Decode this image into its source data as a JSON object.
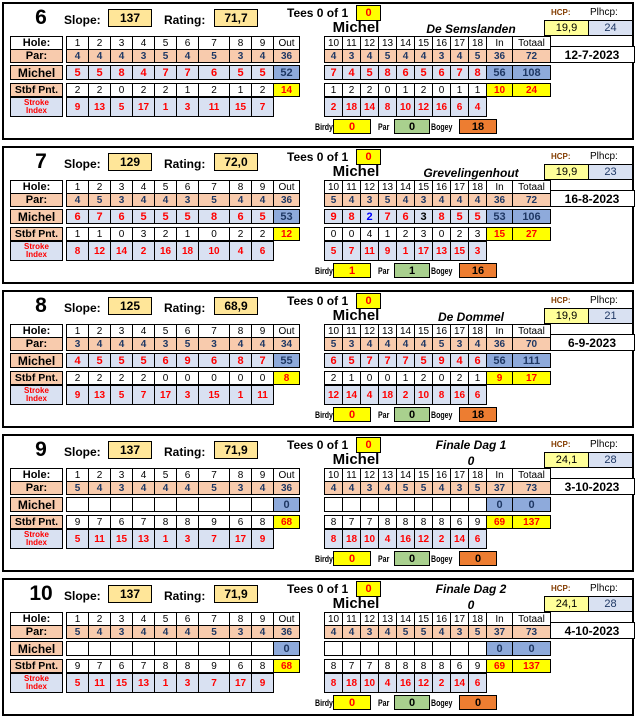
{
  "labels": {
    "slope": "Slope:",
    "rating": "Rating:",
    "tees": "Tees 0 of 1",
    "hcp": "HCP:",
    "plhcp": "Plhcp:",
    "hole": "Hole:",
    "par": "Par:",
    "stbf": "Stbf Pnt.",
    "stroke1": "Stroke",
    "stroke2": "Index",
    "out": "Out",
    "in": "In",
    "totaal": "Totaal",
    "birdy": "Birdy",
    "par_sum": "Par",
    "bogey": "Bogey",
    "front_holes": [
      "1",
      "2",
      "3",
      "4",
      "5",
      "6",
      "7",
      "8",
      "9"
    ],
    "back_holes": [
      "10",
      "11",
      "12",
      "13",
      "14",
      "15",
      "16",
      "17",
      "18"
    ]
  },
  "colors": {
    "peach": "#F8CBAD",
    "lavender": "#D9E1F2",
    "score_total_blue": "#8EAADB",
    "tan": "#FFE699",
    "yellow": "#FFFF00",
    "pale_yellow": "#FFFF99",
    "green": "#A9D08E",
    "orange": "#ED7D31",
    "red": "#FF0000",
    "navy": "#1F3864",
    "birdie_blue": "#0000FF"
  },
  "blocks": [
    {
      "round": "6",
      "slope": "137",
      "rating": "71,7",
      "tees_value": "0",
      "player": "Michel",
      "course_top": "",
      "course": "De Semslanden",
      "hcp": "19,9",
      "plhcp": "24",
      "date": "12-7-2023",
      "front": {
        "par": [
          "4",
          "4",
          "4",
          "3",
          "5",
          "4",
          "5",
          "3",
          "4"
        ],
        "par_out": "36",
        "scores": [
          "5",
          "5",
          "8",
          "4",
          "7",
          "7",
          "6",
          "5",
          "5"
        ],
        "score_colors": [
          "red",
          "red",
          "red",
          "red",
          "red",
          "red",
          "red",
          "red",
          "red"
        ],
        "score_out": "52",
        "stbf": [
          "2",
          "2",
          "0",
          "2",
          "2",
          "1",
          "2",
          "1",
          "2"
        ],
        "stbf_out": "14",
        "stroke": [
          "9",
          "13",
          "5",
          "17",
          "1",
          "3",
          "11",
          "15",
          "7"
        ]
      },
      "back": {
        "par": [
          "4",
          "3",
          "4",
          "5",
          "4",
          "4",
          "3",
          "4",
          "5"
        ],
        "par_in": "36",
        "par_total": "72",
        "scores": [
          "7",
          "4",
          "5",
          "8",
          "6",
          "5",
          "6",
          "7",
          "8"
        ],
        "score_colors": [
          "red",
          "red",
          "red",
          "red",
          "red",
          "red",
          "red",
          "red",
          "red"
        ],
        "score_in": "56",
        "score_total": "108",
        "stbf": [
          "1",
          "2",
          "2",
          "0",
          "1",
          "2",
          "0",
          "1",
          "1"
        ],
        "stbf_in": "10",
        "stbf_total": "24",
        "stroke": [
          "2",
          "18",
          "14",
          "8",
          "10",
          "12",
          "16",
          "6",
          "4"
        ]
      },
      "summary": {
        "birdy": "0",
        "par": "0",
        "bogey": "18"
      }
    },
    {
      "round": "7",
      "slope": "129",
      "rating": "72,0",
      "tees_value": "0",
      "player": "Michel",
      "course_top": "",
      "course": "Grevelingenhout",
      "hcp": "19,9",
      "plhcp": "23",
      "date": "16-8-2023",
      "front": {
        "par": [
          "4",
          "5",
          "3",
          "4",
          "4",
          "3",
          "5",
          "4",
          "4"
        ],
        "par_out": "36",
        "scores": [
          "6",
          "7",
          "6",
          "5",
          "5",
          "5",
          "8",
          "6",
          "5"
        ],
        "score_colors": [
          "red",
          "red",
          "red",
          "red",
          "red",
          "red",
          "red",
          "red",
          "red"
        ],
        "score_out": "53",
        "stbf": [
          "1",
          "1",
          "0",
          "3",
          "2",
          "1",
          "0",
          "2",
          "2"
        ],
        "stbf_out": "12",
        "stroke": [
          "8",
          "12",
          "14",
          "2",
          "16",
          "18",
          "10",
          "4",
          "6"
        ]
      },
      "back": {
        "par": [
          "5",
          "4",
          "3",
          "5",
          "4",
          "3",
          "4",
          "4",
          "4"
        ],
        "par_in": "36",
        "par_total": "72",
        "scores": [
          "9",
          "8",
          "2",
          "7",
          "6",
          "3",
          "8",
          "5",
          "5"
        ],
        "score_colors": [
          "red",
          "red",
          "blue",
          "red",
          "red",
          "black",
          "red",
          "red",
          "red"
        ],
        "score_in": "53",
        "score_total": "106",
        "stbf": [
          "0",
          "0",
          "4",
          "1",
          "2",
          "3",
          "0",
          "2",
          "3"
        ],
        "stbf_in": "15",
        "stbf_total": "27",
        "stroke": [
          "5",
          "7",
          "11",
          "9",
          "1",
          "17",
          "13",
          "15",
          "3"
        ]
      },
      "summary": {
        "birdy": "1",
        "par": "1",
        "bogey": "16"
      }
    },
    {
      "round": "8",
      "slope": "125",
      "rating": "68,9",
      "tees_value": "0",
      "player": "Michel",
      "course_top": "",
      "course": "De Dommel",
      "hcp": "19,9",
      "plhcp": "21",
      "date": "6-9-2023",
      "front": {
        "par": [
          "3",
          "4",
          "4",
          "4",
          "3",
          "5",
          "3",
          "4",
          "4"
        ],
        "par_out": "34",
        "scores": [
          "4",
          "5",
          "5",
          "5",
          "6",
          "9",
          "6",
          "8",
          "7"
        ],
        "score_colors": [
          "red",
          "red",
          "red",
          "red",
          "red",
          "red",
          "red",
          "red",
          "red"
        ],
        "score_out": "55",
        "stbf": [
          "2",
          "2",
          "2",
          "2",
          "0",
          "0",
          "0",
          "0",
          "0"
        ],
        "stbf_out": "8",
        "stroke": [
          "9",
          "13",
          "5",
          "7",
          "17",
          "3",
          "15",
          "1",
          "11"
        ]
      },
      "back": {
        "par": [
          "5",
          "3",
          "4",
          "4",
          "4",
          "4",
          "5",
          "3",
          "4"
        ],
        "par_in": "36",
        "par_total": "70",
        "scores": [
          "6",
          "5",
          "7",
          "7",
          "7",
          "5",
          "9",
          "4",
          "6"
        ],
        "score_colors": [
          "red",
          "red",
          "red",
          "red",
          "red",
          "red",
          "red",
          "red",
          "red"
        ],
        "score_in": "56",
        "score_total": "111",
        "stbf": [
          "2",
          "1",
          "0",
          "0",
          "1",
          "2",
          "0",
          "2",
          "1"
        ],
        "stbf_in": "9",
        "stbf_total": "17",
        "stroke": [
          "12",
          "14",
          "4",
          "18",
          "2",
          "10",
          "8",
          "16",
          "6"
        ]
      },
      "summary": {
        "birdy": "0",
        "par": "0",
        "bogey": "18"
      }
    },
    {
      "round": "9",
      "slope": "137",
      "rating": "71,9",
      "tees_value": "0",
      "player": "Michel",
      "course_top": "Finale Dag 1",
      "course": "0",
      "hcp": "24,1",
      "plhcp": "28",
      "date": "3-10-2023",
      "front": {
        "par": [
          "5",
          "4",
          "3",
          "4",
          "4",
          "4",
          "5",
          "3",
          "4"
        ],
        "par_out": "36",
        "scores": [
          "",
          "",
          "",
          "",
          "",
          "",
          "",
          "",
          ""
        ],
        "score_colors": [
          "",
          "",
          "",
          "",
          "",
          "",
          "",
          "",
          ""
        ],
        "score_out": "0",
        "stbf": [
          "9",
          "7",
          "6",
          "7",
          "8",
          "8",
          "9",
          "6",
          "8"
        ],
        "stbf_out": "68",
        "stroke": [
          "5",
          "11",
          "15",
          "13",
          "1",
          "3",
          "7",
          "17",
          "9"
        ]
      },
      "back": {
        "par": [
          "4",
          "4",
          "3",
          "4",
          "5",
          "5",
          "4",
          "3",
          "5"
        ],
        "par_in": "37",
        "par_total": "73",
        "scores": [
          "",
          "",
          "",
          "",
          "",
          "",
          "",
          "",
          ""
        ],
        "score_colors": [
          "",
          "",
          "",
          "",
          "",
          "",
          "",
          "",
          ""
        ],
        "score_in": "0",
        "score_total": "0",
        "stbf": [
          "8",
          "7",
          "7",
          "8",
          "8",
          "8",
          "8",
          "6",
          "9"
        ],
        "stbf_in": "69",
        "stbf_total": "137",
        "stroke": [
          "8",
          "18",
          "10",
          "4",
          "16",
          "12",
          "2",
          "14",
          "6"
        ]
      },
      "summary": {
        "birdy": "0",
        "par": "0",
        "bogey": "0"
      }
    },
    {
      "round": "10",
      "slope": "137",
      "rating": "71,9",
      "tees_value": "0",
      "player": "Michel",
      "course_top": "Finale Dag 2",
      "course": "0",
      "hcp": "24,1",
      "plhcp": "28",
      "date": "4-10-2023",
      "front": {
        "par": [
          "5",
          "4",
          "3",
          "4",
          "4",
          "4",
          "5",
          "3",
          "4"
        ],
        "par_out": "36",
        "scores": [
          "",
          "",
          "",
          "",
          "",
          "",
          "",
          "",
          ""
        ],
        "score_colors": [
          "",
          "",
          "",
          "",
          "",
          "",
          "",
          "",
          ""
        ],
        "score_out": "0",
        "stbf": [
          "9",
          "7",
          "6",
          "7",
          "8",
          "8",
          "9",
          "6",
          "8"
        ],
        "stbf_out": "68",
        "stroke": [
          "5",
          "11",
          "15",
          "13",
          "1",
          "3",
          "7",
          "17",
          "9"
        ]
      },
      "back": {
        "par": [
          "4",
          "4",
          "3",
          "4",
          "5",
          "5",
          "4",
          "3",
          "5"
        ],
        "par_in": "37",
        "par_total": "73",
        "scores": [
          "",
          "",
          "",
          "",
          "",
          "",
          "",
          "",
          ""
        ],
        "score_colors": [
          "",
          "",
          "",
          "",
          "",
          "",
          "",
          "",
          ""
        ],
        "score_in": "0",
        "score_total": "0",
        "stbf": [
          "8",
          "7",
          "7",
          "8",
          "8",
          "8",
          "8",
          "6",
          "9"
        ],
        "stbf_in": "69",
        "stbf_total": "137",
        "stroke": [
          "8",
          "18",
          "10",
          "4",
          "16",
          "12",
          "2",
          "14",
          "6"
        ]
      },
      "summary": {
        "birdy": "0",
        "par": "0",
        "bogey": "0"
      }
    }
  ]
}
